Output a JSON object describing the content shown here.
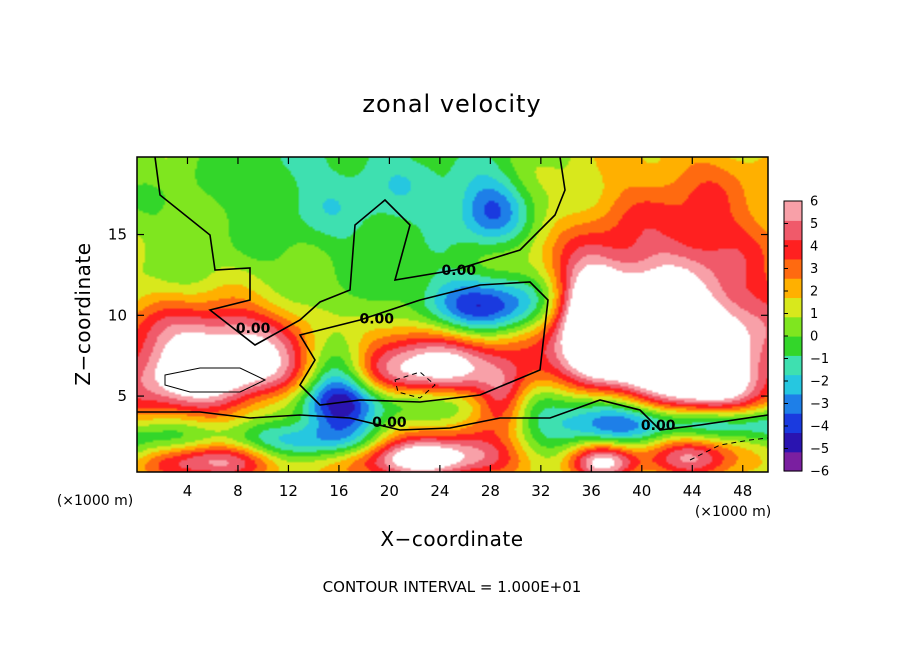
{
  "chart_data": {
    "type": "heatmap",
    "title": "zonal velocity",
    "xlabel": "X−coordinate",
    "ylabel": "Z−coordinate",
    "x_unit_left": "(×1000 m)",
    "x_unit_right": "(×1000 m)",
    "xlim": [
      0,
      50
    ],
    "ylim": [
      0.3,
      19.8
    ],
    "x_ticks": [
      4,
      8,
      12,
      16,
      20,
      24,
      28,
      32,
      36,
      40,
      44,
      48
    ],
    "x_tick_labels": [
      "4",
      "8",
      "12",
      "16",
      "20",
      "24",
      "28",
      "32",
      "36",
      "40",
      "44",
      "48"
    ],
    "y_ticks": [
      5,
      10,
      15
    ],
    "y_tick_labels": [
      "5",
      "10",
      "15"
    ],
    "colorbar": {
      "min": -6,
      "max": 6,
      "ticks": [
        6,
        5,
        4,
        3,
        2,
        1,
        0,
        -1,
        -2,
        -3,
        -4,
        -5,
        -6
      ],
      "tick_labels": [
        "6",
        "5",
        "4",
        "3",
        "2",
        "1",
        "0",
        "−1",
        "−2",
        "−3",
        "−4",
        "−5",
        "−6"
      ],
      "colors": [
        "#7a1fa0",
        "#2a14b0",
        "#1a3adf",
        "#1e7fe8",
        "#26c7e0",
        "#3ee0b0",
        "#33d62a",
        "#7fe61f",
        "#d8e81c",
        "#ffb000",
        "#ff6a10",
        "#ff2020",
        "#f05a6a",
        "#f8a0a8"
      ]
    },
    "contour_labels": [
      {
        "text": "0.00",
        "x": 19.0,
        "y": 9.8
      },
      {
        "text": "0.00",
        "x": 25.5,
        "y": 12.8
      },
      {
        "text": "0.00",
        "x": 9.2,
        "y": 9.2
      },
      {
        "text": "0.00",
        "x": 20.0,
        "y": 3.4
      },
      {
        "text": "0.00",
        "x": 41.3,
        "y": 3.2
      }
    ],
    "field_features": [
      {
        "v": 1.0,
        "x": 25,
        "y": 10,
        "sx": 30,
        "sy": 12
      },
      {
        "v": -2.2,
        "x": 18,
        "y": 17.5,
        "sx": 8,
        "sy": 3.5
      },
      {
        "v": -3.5,
        "x": 28,
        "y": 16.5,
        "sx": 2,
        "sy": 1.5
      },
      {
        "v": 3.0,
        "x": 44,
        "y": 15,
        "sx": 6,
        "sy": 4.5
      },
      {
        "v": 4.5,
        "x": 40,
        "y": 10,
        "sx": 6,
        "sy": 2.6
      },
      {
        "v": 3.5,
        "x": 45,
        "y": 8,
        "sx": 6,
        "sy": 2
      },
      {
        "v": 6.0,
        "x": 36,
        "y": 9.2,
        "sx": 2,
        "sy": 3
      },
      {
        "v": 6.0,
        "x": 44,
        "y": 5.5,
        "sx": 4,
        "sy": 1.5
      },
      {
        "v": 3.8,
        "x": 6,
        "y": 9,
        "sx": 5,
        "sy": 1.5
      },
      {
        "v": 7.0,
        "x": 6,
        "y": 6,
        "sx": 6,
        "sy": 1.8
      },
      {
        "v": 7.0,
        "x": 23,
        "y": 6,
        "sx": 5,
        "sy": 2.3
      },
      {
        "v": -6.0,
        "x": 21,
        "y": 4.6,
        "sx": 8,
        "sy": 1.1
      },
      {
        "v": -6.0,
        "x": 28,
        "y": 10.5,
        "sx": 4.5,
        "sy": 1.4
      },
      {
        "v": -5.0,
        "x": 16,
        "y": 6,
        "sx": 2,
        "sy": 2.5
      },
      {
        "v": -4.5,
        "x": 9,
        "y": 2.1,
        "sx": 9,
        "sy": 0.9
      },
      {
        "v": -4.0,
        "x": 37,
        "y": 3.3,
        "sx": 4,
        "sy": 1.8
      },
      {
        "v": -4.0,
        "x": 46,
        "y": 3.3,
        "sx": 5,
        "sy": 0.8
      },
      {
        "v": 6.5,
        "x": 6,
        "y": 1.2,
        "sx": 4,
        "sy": 1.0
      },
      {
        "v": 6.5,
        "x": 23,
        "y": 1.2,
        "sx": 5,
        "sy": 1.0
      },
      {
        "v": 6.5,
        "x": 37,
        "y": 1.0,
        "sx": 2,
        "sy": 0.9
      },
      {
        "v": 5.0,
        "x": 44,
        "y": 1.2,
        "sx": 3,
        "sy": 1.0
      },
      {
        "v": 4.5,
        "x": 29,
        "y": 4.8,
        "sx": 1.5,
        "sy": 1.3
      }
    ],
    "grid": false,
    "legend": "colorbar-right",
    "footer": "CONTOUR INTERVAL = 1.000E+01"
  }
}
